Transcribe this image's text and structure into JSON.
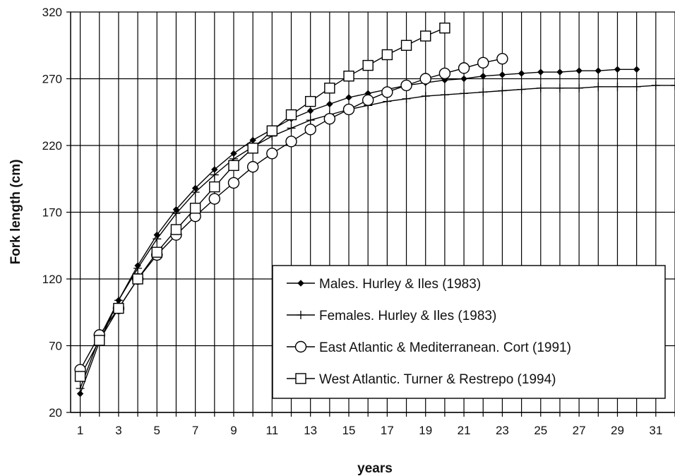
{
  "chart_data": {
    "type": "line",
    "xlabel": "years",
    "ylabel": "Fork length (cm)",
    "xlim": [
      0.5,
      32
    ],
    "ylim": [
      20,
      320
    ],
    "x_ticks": [
      1,
      3,
      5,
      7,
      9,
      11,
      13,
      15,
      17,
      19,
      21,
      23,
      25,
      27,
      29,
      31
    ],
    "y_ticks": [
      20,
      70,
      120,
      170,
      220,
      270,
      320
    ],
    "grid": true,
    "legend_position": "bottom-right",
    "series": [
      {
        "name": "Males. Hurley & Iles (1983)",
        "marker": "diamond",
        "x": [
          1,
          2,
          3,
          4,
          5,
          6,
          7,
          8,
          9,
          10,
          11,
          12,
          13,
          14,
          15,
          16,
          17,
          18,
          19,
          20,
          21,
          22,
          23,
          24,
          25,
          26,
          27,
          28,
          29,
          30
        ],
        "y": [
          34,
          73,
          104,
          130,
          153,
          172,
          188,
          202,
          214,
          224,
          232,
          240,
          246,
          251,
          256,
          259,
          262,
          265,
          267,
          269,
          270,
          272,
          273,
          274,
          275,
          275,
          276,
          276,
          277,
          277
        ]
      },
      {
        "name": "Females. Hurley & Iles (1983)",
        "marker": "plus",
        "x": [
          1,
          2,
          3,
          4,
          5,
          6,
          7,
          8,
          9,
          10,
          11,
          12,
          13,
          14,
          15,
          16,
          17,
          18,
          19,
          20,
          21,
          22,
          23,
          24,
          25,
          26,
          27,
          28,
          29,
          30,
          31,
          32
        ],
        "y": [
          38,
          76,
          104,
          128,
          150,
          169,
          185,
          198,
          210,
          219,
          227,
          233,
          239,
          243,
          247,
          250,
          253,
          255,
          257,
          258,
          259,
          260,
          261,
          262,
          263,
          263,
          263,
          264,
          264,
          264,
          265,
          265
        ]
      },
      {
        "name": "East Atlantic & Mediterranean. Cort (1991)",
        "marker": "circle",
        "x": [
          1,
          2,
          3,
          4,
          5,
          6,
          7,
          8,
          9,
          10,
          11,
          12,
          13,
          14,
          15,
          16,
          17,
          18,
          19,
          20,
          21,
          22,
          23
        ],
        "y": [
          52,
          78,
          98,
          120,
          138,
          153,
          167,
          180,
          192,
          204,
          214,
          223,
          232,
          240,
          247,
          254,
          260,
          265,
          270,
          274,
          278,
          282,
          285
        ]
      },
      {
        "name": "West Atlantic. Turner & Restrepo (1994)",
        "marker": "square",
        "x": [
          1,
          2,
          3,
          4,
          5,
          6,
          7,
          8,
          9,
          10,
          11,
          12,
          13,
          14,
          15,
          16,
          17,
          18,
          19,
          20
        ],
        "y": [
          47,
          74,
          98,
          120,
          140,
          157,
          173,
          189,
          205,
          218,
          231,
          243,
          253,
          263,
          272,
          280,
          288,
          295,
          302,
          308
        ]
      }
    ]
  }
}
